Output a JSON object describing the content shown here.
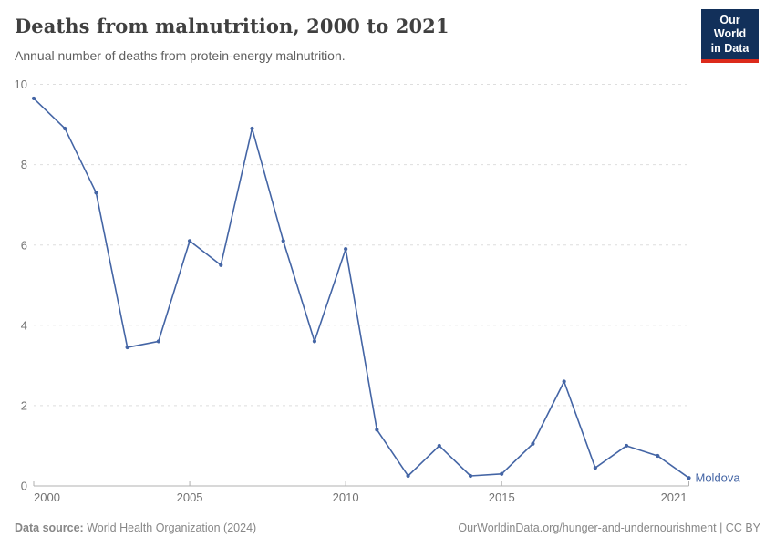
{
  "header": {
    "title": "Deaths from malnutrition, 2000 to 2021",
    "subtitle": "Annual number of deaths from protein-energy malnutrition."
  },
  "logo": {
    "line1": "Our World",
    "line2": "in Data",
    "bg_color": "#12305a",
    "accent_color": "#dc2a1b"
  },
  "chart_data": {
    "type": "line",
    "title": "Deaths from malnutrition, 2000 to 2021",
    "subtitle": "Annual number of deaths from protein-energy malnutrition.",
    "xlabel": "",
    "ylabel": "",
    "x": [
      2000,
      2001,
      2002,
      2003,
      2004,
      2005,
      2006,
      2007,
      2008,
      2009,
      2010,
      2011,
      2012,
      2013,
      2014,
      2015,
      2016,
      2017,
      2018,
      2019,
      2020,
      2021
    ],
    "series": [
      {
        "name": "Moldova",
        "color": "#4465a5",
        "values": [
          9.65,
          8.9,
          7.3,
          3.45,
          3.6,
          6.1,
          5.5,
          8.9,
          6.1,
          3.6,
          5.9,
          1.4,
          0.25,
          1.0,
          0.25,
          0.3,
          1.05,
          2.6,
          0.45,
          1.0,
          0.75,
          0.2
        ]
      }
    ],
    "xlim": [
      2000,
      2021
    ],
    "ylim": [
      0,
      10
    ],
    "yticks": [
      0,
      2,
      4,
      6,
      8,
      10
    ],
    "xticks": [
      2000,
      2005,
      2010,
      2015,
      2021
    ],
    "grid": "horizontal-dashed",
    "legend": "end-of-line-label",
    "axis_text_color": "#737373",
    "grid_color": "#dedede",
    "axis_line_color": "#b0b0b0"
  },
  "footer": {
    "source_label": "Data source:",
    "source_text": " World Health Organization (2024)",
    "credit_text": "OurWorldinData.org/hunger-and-undernourishment | CC BY"
  }
}
